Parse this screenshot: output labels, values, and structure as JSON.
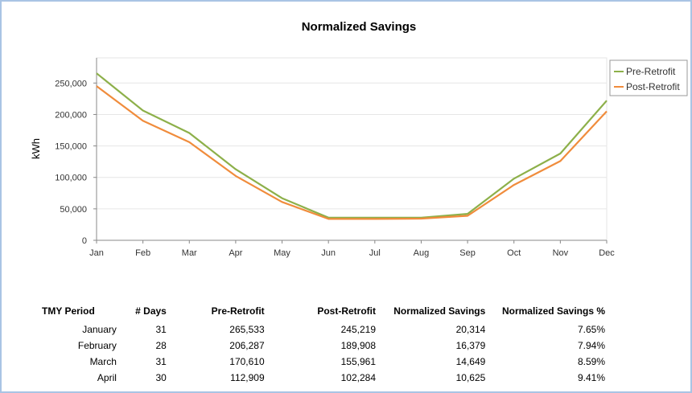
{
  "chart_data": {
    "type": "line",
    "title": "Normalized Savings",
    "ylabel": "kWh",
    "xlabel": "",
    "categories": [
      "Jan",
      "Feb",
      "Mar",
      "Apr",
      "May",
      "Jun",
      "Jul",
      "Aug",
      "Sep",
      "Oct",
      "Nov",
      "Dec"
    ],
    "series": [
      {
        "name": "Pre-Retrofit",
        "color": "#8db04a",
        "values": [
          265533,
          206287,
          170610,
          112909,
          67000,
          36000,
          36000,
          36000,
          42000,
          98000,
          138000,
          222000
        ]
      },
      {
        "name": "Post-Retrofit",
        "color": "#f08c3c",
        "values": [
          245219,
          189908,
          155961,
          102284,
          61000,
          34000,
          34000,
          34500,
          39000,
          88000,
          126000,
          205000
        ]
      }
    ],
    "ylim": [
      0,
      290000
    ],
    "yticks": [
      0,
      50000,
      100000,
      150000,
      200000,
      250000
    ],
    "ytick_labels": [
      "0",
      "50,000",
      "100,000",
      "150,000",
      "200,000",
      "250,000"
    ],
    "grid": true,
    "legend_position": "right"
  },
  "table": {
    "headers": [
      "TMY Period",
      "# Days",
      "Pre-Retrofit",
      "Post-Retrofit",
      "Normalized Savings",
      "Normalized Savings %"
    ],
    "rows": [
      [
        "January",
        "31",
        "265,533",
        "245,219",
        "20,314",
        "7.65%"
      ],
      [
        "February",
        "28",
        "206,287",
        "189,908",
        "16,379",
        "7.94%"
      ],
      [
        "March",
        "31",
        "170,610",
        "155,961",
        "14,649",
        "8.59%"
      ],
      [
        "April",
        "30",
        "112,909",
        "102,284",
        "10,625",
        "9.41%"
      ]
    ]
  }
}
